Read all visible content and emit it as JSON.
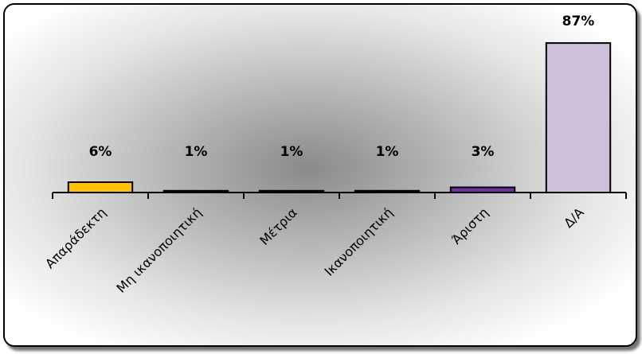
{
  "chart_data": {
    "type": "bar",
    "categories": [
      "Απαράδεκτη",
      "Μη ικανοποιητική",
      "Μέτρια",
      "Ικανοποιητική",
      "Άριστη",
      "Δ/Α"
    ],
    "values": [
      6,
      1,
      1,
      1,
      3,
      87
    ],
    "value_labels": [
      "6%",
      "1%",
      "1%",
      "1%",
      "3%",
      "87%"
    ],
    "colors": [
      "#ffc000",
      "#1f1f1f",
      "#1f1f1f",
      "#1f1f1f",
      "#7030a0",
      "#ccc0da"
    ],
    "title": "",
    "xlabel": "",
    "ylabel": "",
    "ylim": [
      0,
      100
    ],
    "grid": false,
    "legend": "none"
  }
}
